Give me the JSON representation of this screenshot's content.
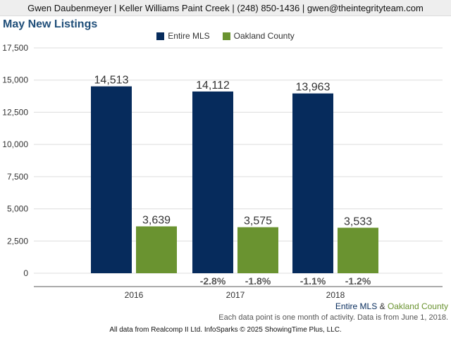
{
  "header": {
    "contact": "Gwen Daubenmeyer | Keller Williams Paint Creek | (248) 850-1436 | gwen@theintegrityteam.com"
  },
  "colors": {
    "entire_mls": "#062b5c",
    "oakland_county": "#6a9330",
    "title": "#1f4e79",
    "grid": "#dddddd"
  },
  "chart_data": {
    "type": "bar",
    "title": "May New Listings",
    "categories": [
      "2016",
      "2017",
      "2018"
    ],
    "ylim": [
      0,
      17500
    ],
    "yticks": [
      0,
      2500,
      5000,
      7500,
      10000,
      12500,
      15000,
      17500
    ],
    "ytick_labels": [
      "0",
      "2,500",
      "5,000",
      "7,500",
      "10,000",
      "12,500",
      "15,000",
      "17,500"
    ],
    "grid": true,
    "legend_position": "top-center",
    "series": [
      {
        "name": "Entire MLS",
        "values": [
          14513,
          14112,
          13963
        ],
        "labels": [
          "14,513",
          "14,112",
          "13,963"
        ],
        "changes": [
          "",
          "-2.8%",
          "-1.1%"
        ]
      },
      {
        "name": "Oakland County",
        "values": [
          3639,
          3575,
          3533
        ],
        "labels": [
          "3,639",
          "3,575",
          "3,533"
        ],
        "changes": [
          "",
          "-1.8%",
          "-1.2%"
        ]
      }
    ]
  },
  "footer": {
    "series_a": "Entire MLS",
    "amp": "&",
    "series_b": "Oakland County",
    "note": "Each data point is one month of activity. Data is from June 1, 2018.",
    "credit": "All data from Realcomp II Ltd. InfoSparks © 2025 ShowingTime Plus, LLC."
  }
}
